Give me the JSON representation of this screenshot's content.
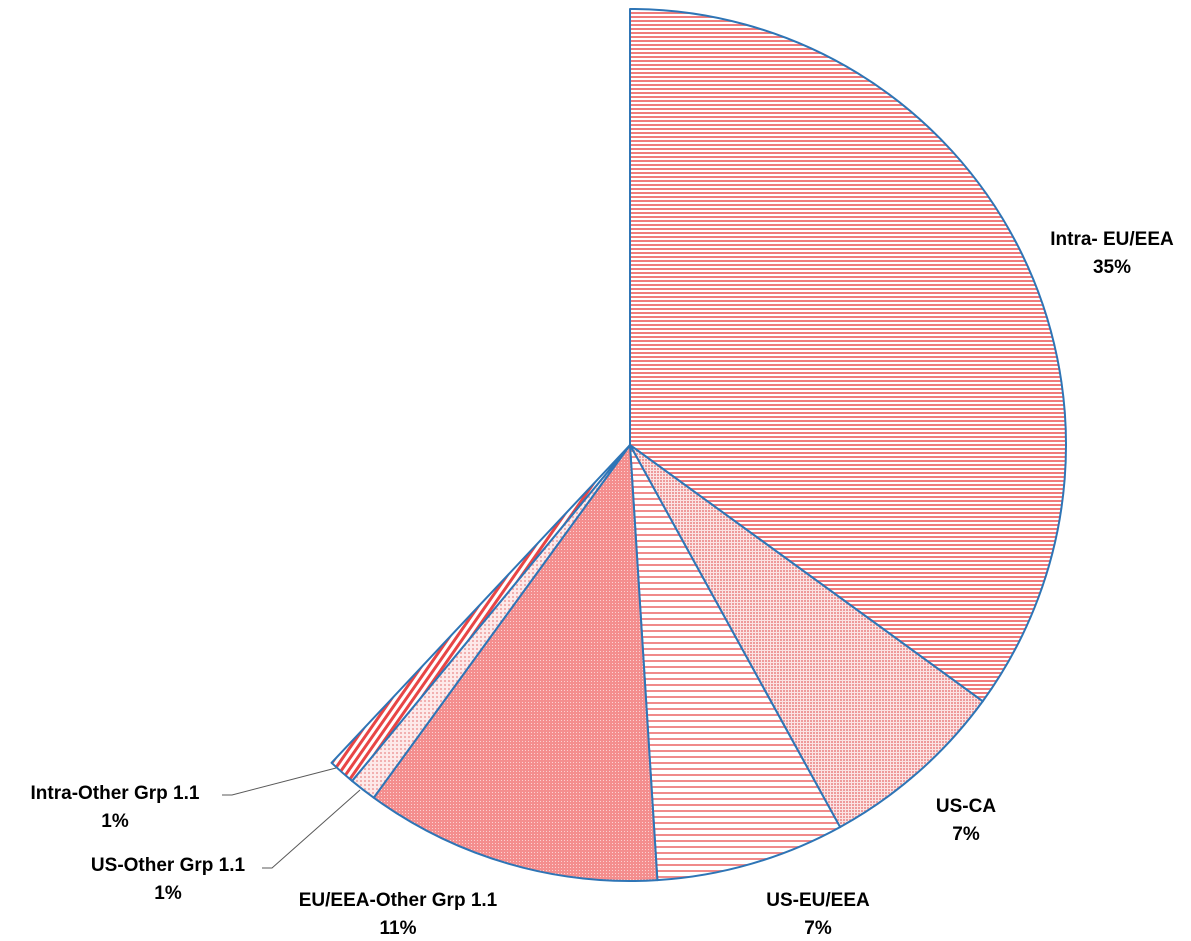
{
  "chart_data": {
    "type": "pie",
    "title": "",
    "slices": [
      {
        "name": "Intra- EU/EEA",
        "value": 35,
        "label": "35%",
        "color": "#f07b7b",
        "pattern": "hstripes-fine"
      },
      {
        "name": "US-CA",
        "value": 7,
        "label": "7%",
        "color": "#f2a6a6",
        "pattern": "dots-fine"
      },
      {
        "name": "US-EU/EEA",
        "value": 7,
        "label": "7%",
        "color": "#f4a0a0",
        "pattern": "hstripes-wide"
      },
      {
        "name": "EU/EEA-Other Grp 1.1",
        "value": 11,
        "label": "11%",
        "color": "#f27f7f",
        "pattern": "dots-dense"
      },
      {
        "name": "US-Other Grp 1.1",
        "value": 1,
        "label": "1%",
        "color": "#f6c2c2",
        "pattern": "dots-light"
      },
      {
        "name": "Intra-Other Grp 1.1",
        "value": 1,
        "label": "1%",
        "color": "#e84545",
        "pattern": "diag-stripes"
      }
    ],
    "start": "12 o'clock",
    "direction": "clockwise",
    "remainder": "unfilled",
    "outline_color": "#2e75b6",
    "legend": "none"
  }
}
